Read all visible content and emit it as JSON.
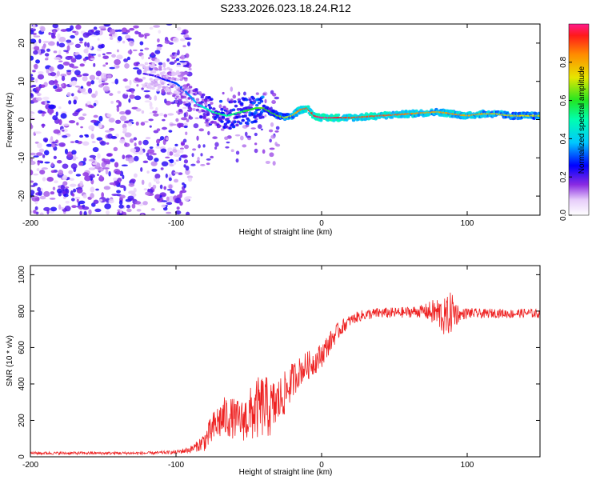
{
  "title": "S233.2026.023.18.24.R12",
  "chart_data": [
    {
      "type": "heatmap",
      "name": "spectrogram",
      "xlabel": "Height of straight line (km)",
      "ylabel": "Frequency (Hz)",
      "xlim": [
        -200,
        150
      ],
      "ylim": [
        -25,
        25
      ],
      "xticks": [
        -200,
        -100,
        0,
        100
      ],
      "xtick_labels": [
        "-200",
        "-100",
        "0",
        "100"
      ],
      "yticks": [
        -20,
        -10,
        0,
        10,
        20
      ],
      "ytick_labels": [
        "-20",
        "-10",
        "0",
        "10",
        "20"
      ],
      "colorbar": {
        "label": "Normalized spectral amplitude",
        "range": [
          0,
          1
        ],
        "ticks": [
          0.0,
          0.2,
          0.4,
          0.6,
          0.8
        ],
        "tick_labels": [
          "0.0",
          "0.2",
          "0.4",
          "0.6",
          "0.8"
        ]
      },
      "ridge": {
        "x": [
          -122,
          -115,
          -108,
          -100,
          -95,
          -90,
          -85,
          -80,
          -75,
          -70,
          -65,
          -60,
          -55,
          -50,
          -45,
          -40,
          -35,
          -30,
          -25,
          -20,
          -15,
          -10,
          -5,
          0,
          10,
          20,
          40,
          60,
          80,
          90,
          100,
          110,
          120,
          130,
          150
        ],
        "freq": [
          12,
          11.5,
          10.5,
          9.5,
          8,
          6,
          4,
          3,
          2,
          1.5,
          1,
          1.5,
          2,
          2.5,
          3,
          3,
          2,
          1,
          0.5,
          1,
          2.5,
          3,
          1,
          0.5,
          0.5,
          0.5,
          1,
          1.5,
          2,
          1.5,
          1,
          1.5,
          1.5,
          1,
          1
        ],
        "amplitude": [
          0.2,
          0.22,
          0.25,
          0.3,
          0.3,
          0.35,
          0.4,
          0.45,
          0.5,
          0.55,
          0.5,
          0.55,
          0.55,
          0.6,
          0.6,
          0.65,
          0.6,
          0.65,
          0.7,
          0.75,
          0.85,
          0.9,
          0.95,
          1.0,
          0.95,
          0.9,
          0.9,
          0.85,
          0.8,
          0.85,
          0.8,
          0.8,
          0.75,
          0.75,
          0.7
        ]
      },
      "noise_region": {
        "x_range": [
          -200,
          -100
        ],
        "freq_range": [
          -25,
          25
        ],
        "amplitude_range": [
          0.05,
          0.25
        ]
      }
    },
    {
      "type": "line",
      "name": "snr",
      "xlabel": "Height of straight line (km)",
      "ylabel": "SNR (10 * v/v)",
      "xlim": [
        -200,
        150
      ],
      "ylim": [
        0,
        1050
      ],
      "xticks": [
        -200,
        -100,
        0,
        100
      ],
      "xtick_labels": [
        "-200",
        "-100",
        "0",
        "100"
      ],
      "yticks": [
        0,
        200,
        400,
        600,
        800,
        1000
      ],
      "ytick_labels": [
        "0",
        "200",
        "400",
        "600",
        "800",
        "1000"
      ],
      "series": [
        {
          "name": "SNR",
          "color": "#ee2222",
          "x": [
            -200,
            -180,
            -160,
            -140,
            -120,
            -100,
            -90,
            -85,
            -80,
            -75,
            -70,
            -65,
            -60,
            -55,
            -50,
            -45,
            -40,
            -35,
            -30,
            -25,
            -20,
            -15,
            -10,
            -5,
            0,
            5,
            10,
            15,
            20,
            25,
            30,
            40,
            50,
            60,
            70,
            80,
            85,
            90,
            95,
            100,
            110,
            120,
            130,
            140,
            150
          ],
          "y": [
            20,
            20,
            20,
            20,
            20,
            25,
            40,
            60,
            90,
            150,
            200,
            220,
            210,
            200,
            220,
            260,
            280,
            260,
            300,
            350,
            420,
            470,
            500,
            520,
            560,
            620,
            680,
            720,
            750,
            770,
            780,
            790,
            790,
            795,
            800,
            790,
            760,
            800,
            780,
            790,
            785,
            790,
            785,
            790,
            785
          ],
          "noise": [
            8,
            8,
            8,
            8,
            8,
            10,
            20,
            30,
            60,
            90,
            110,
            120,
            110,
            110,
            150,
            170,
            180,
            160,
            140,
            120,
            100,
            80,
            80,
            70,
            70,
            60,
            50,
            40,
            30,
            30,
            30,
            30,
            30,
            30,
            35,
            90,
            110,
            120,
            30,
            30,
            25,
            25,
            25,
            25,
            25
          ]
        }
      ]
    }
  ]
}
